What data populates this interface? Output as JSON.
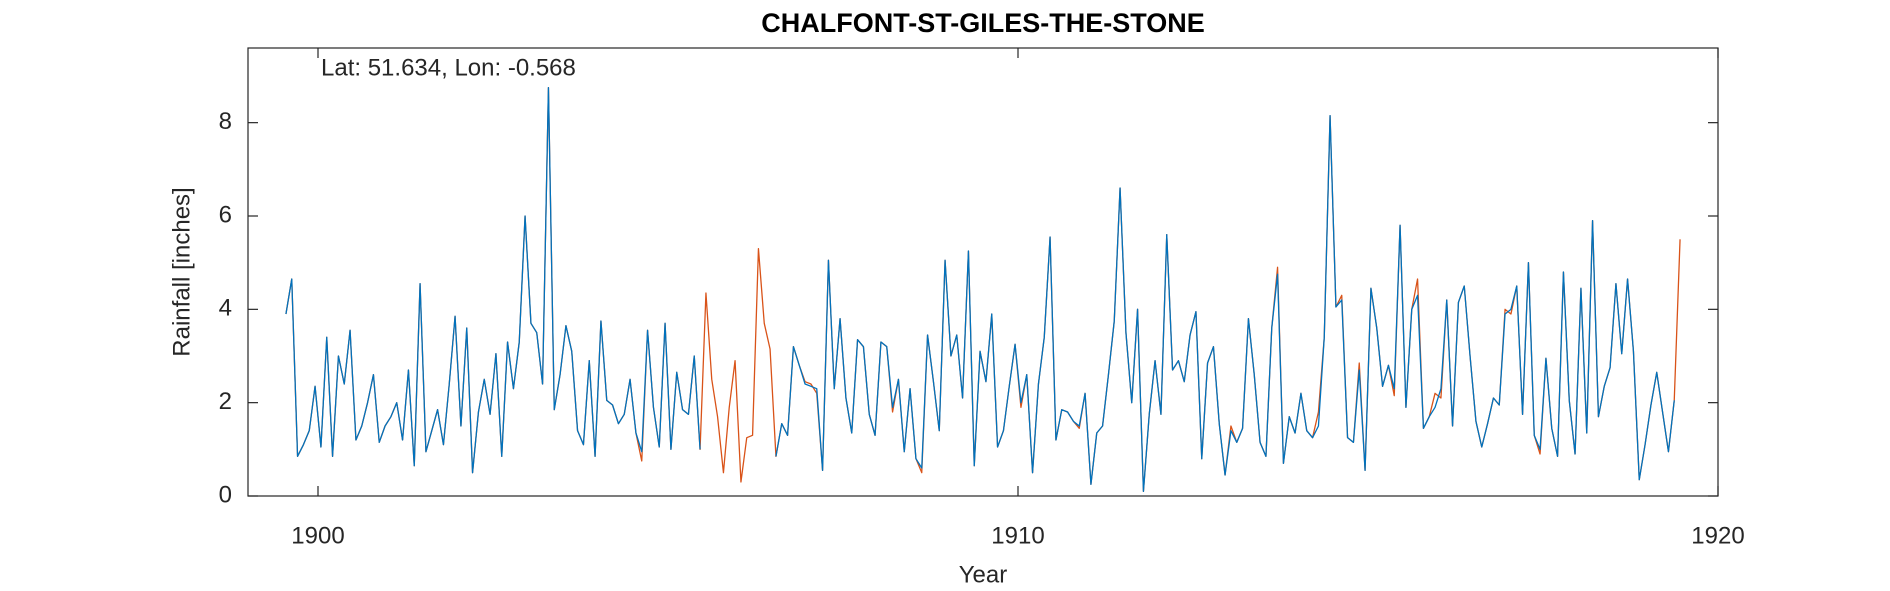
{
  "chart_data": {
    "type": "line",
    "title": "CHALFONT-ST-GILES-THE-STONE",
    "annotation": "Lat: 51.634, Lon: -0.568",
    "xlabel": "Year",
    "ylabel": "Rainfall [inches]",
    "xlim": [
      1899,
      1920
    ],
    "xticks": [
      1900,
      1910,
      1920
    ],
    "ylim": [
      0,
      9.6
    ],
    "yticks": [
      0,
      2,
      4,
      6,
      8
    ],
    "x": [
      1899.542,
      1899.625,
      1899.708,
      1899.792,
      1899.875,
      1899.958,
      1900.042,
      1900.125,
      1900.208,
      1900.292,
      1900.375,
      1900.458,
      1900.542,
      1900.625,
      1900.708,
      1900.792,
      1900.875,
      1900.958,
      1901.042,
      1901.125,
      1901.208,
      1901.292,
      1901.375,
      1901.458,
      1901.542,
      1901.625,
      1901.708,
      1901.792,
      1901.875,
      1901.958,
      1902.042,
      1902.125,
      1902.208,
      1902.292,
      1902.375,
      1902.458,
      1902.542,
      1902.625,
      1902.708,
      1902.792,
      1902.875,
      1902.958,
      1903.042,
      1903.125,
      1903.208,
      1903.292,
      1903.375,
      1903.458,
      1903.542,
      1903.625,
      1903.708,
      1903.792,
      1903.875,
      1903.958,
      1904.042,
      1904.125,
      1904.208,
      1904.292,
      1904.375,
      1904.458,
      1904.542,
      1904.625,
      1904.708,
      1904.792,
      1904.875,
      1904.958,
      1905.042,
      1905.125,
      1905.208,
      1905.292,
      1905.375,
      1905.458,
      1905.542,
      1905.625,
      1905.708,
      1905.792,
      1905.875,
      1905.958,
      1906.042,
      1906.125,
      1906.208,
      1906.292,
      1906.375,
      1906.458,
      1906.542,
      1906.625,
      1906.708,
      1906.792,
      1906.875,
      1906.958,
      1907.042,
      1907.125,
      1907.208,
      1907.292,
      1907.375,
      1907.458,
      1907.542,
      1907.625,
      1907.708,
      1907.792,
      1907.875,
      1907.958,
      1908.042,
      1908.125,
      1908.208,
      1908.292,
      1908.375,
      1908.458,
      1908.542,
      1908.625,
      1908.708,
      1908.792,
      1908.875,
      1908.958,
      1909.042,
      1909.125,
      1909.208,
      1909.292,
      1909.375,
      1909.458,
      1909.542,
      1909.625,
      1909.708,
      1909.792,
      1909.875,
      1909.958,
      1910.042,
      1910.125,
      1910.208,
      1910.292,
      1910.375,
      1910.458,
      1910.542,
      1910.625,
      1910.708,
      1910.792,
      1910.875,
      1910.958,
      1911.042,
      1911.125,
      1911.208,
      1911.292,
      1911.375,
      1911.458,
      1911.542,
      1911.625,
      1911.708,
      1911.792,
      1911.875,
      1911.958,
      1912.042,
      1912.125,
      1912.208,
      1912.292,
      1912.375,
      1912.458,
      1912.542,
      1912.625,
      1912.708,
      1912.792,
      1912.875,
      1912.958,
      1913.042,
      1913.125,
      1913.208,
      1913.292,
      1913.375,
      1913.458,
      1913.542,
      1913.625,
      1913.708,
      1913.792,
      1913.875,
      1913.958,
      1914.042,
      1914.125,
      1914.208,
      1914.292,
      1914.375,
      1914.458,
      1914.542,
      1914.625,
      1914.708,
      1914.792,
      1914.875,
      1914.958,
      1915.042,
      1915.125,
      1915.208,
      1915.292,
      1915.375,
      1915.458,
      1915.542,
      1915.625,
      1915.708,
      1915.792,
      1915.875,
      1915.958,
      1916.042,
      1916.125,
      1916.208,
      1916.292,
      1916.375,
      1916.458,
      1916.542,
      1916.625,
      1916.708,
      1916.792,
      1916.875,
      1916.958,
      1917.042,
      1917.125,
      1917.208,
      1917.292,
      1917.375,
      1917.458,
      1917.542,
      1917.625,
      1917.708,
      1917.792,
      1917.875,
      1917.958,
      1918.042,
      1918.125,
      1918.208,
      1918.292,
      1918.375,
      1918.458,
      1918.542,
      1918.625,
      1918.708,
      1918.792,
      1918.875,
      1918.958,
      1919.042,
      1919.125,
      1919.208,
      1919.292,
      1919.375,
      1919.458
    ],
    "series": [
      {
        "color": "#D95319",
        "values": [
          3.9,
          4.65,
          0.85,
          1.1,
          1.4,
          2.35,
          1.05,
          3.4,
          0.85,
          3.0,
          2.4,
          3.55,
          1.2,
          1.5,
          2.0,
          2.6,
          1.15,
          1.5,
          1.7,
          2.0,
          1.2,
          2.7,
          0.65,
          4.55,
          0.95,
          1.4,
          1.85,
          1.1,
          2.4,
          3.85,
          1.5,
          3.6,
          0.5,
          1.8,
          2.5,
          1.75,
          3.05,
          0.85,
          3.3,
          2.3,
          3.3,
          6.0,
          3.7,
          3.5,
          2.4,
          8.75,
          1.85,
          2.6,
          3.65,
          3.1,
          1.4,
          1.1,
          2.9,
          0.85,
          3.75,
          2.05,
          1.95,
          1.55,
          1.75,
          2.5,
          1.35,
          0.75,
          3.55,
          1.9,
          1.05,
          3.7,
          1.0,
          2.65,
          1.85,
          1.75,
          3.0,
          1.0,
          4.35,
          2.5,
          1.7,
          0.5,
          1.9,
          2.9,
          0.3,
          1.25,
          1.3,
          5.3,
          3.7,
          3.15,
          0.85,
          1.55,
          1.3,
          3.2,
          2.8,
          2.45,
          2.4,
          2.2,
          0.55,
          5.05,
          2.3,
          3.8,
          2.1,
          1.35,
          3.35,
          3.2,
          1.75,
          1.3,
          3.3,
          3.2,
          1.8,
          2.5,
          0.95,
          2.3,
          0.8,
          0.5,
          3.45,
          2.45,
          1.4,
          5.05,
          3.0,
          3.45,
          2.1,
          5.25,
          0.65,
          3.1,
          2.45,
          3.9,
          1.05,
          1.4,
          2.35,
          3.25,
          1.9,
          2.6,
          0.5,
          2.4,
          3.4,
          5.55,
          1.2,
          1.85,
          1.8,
          1.6,
          1.45,
          2.2,
          0.25,
          1.35,
          1.5,
          2.6,
          3.75,
          6.6,
          3.5,
          2.0,
          4.0,
          0.1,
          1.75,
          2.9,
          1.75,
          5.6,
          2.7,
          2.9,
          2.45,
          3.45,
          3.95,
          0.8,
          2.85,
          3.2,
          1.55,
          0.45,
          1.5,
          1.15,
          1.45,
          3.8,
          2.6,
          1.15,
          0.85,
          3.6,
          4.9,
          0.7,
          1.7,
          1.35,
          2.2,
          1.4,
          1.25,
          1.8,
          3.4,
          8.15,
          4.05,
          4.3,
          1.25,
          1.15,
          2.85,
          0.55,
          4.45,
          3.6,
          2.35,
          2.8,
          2.15,
          5.8,
          1.9,
          4.0,
          4.65,
          1.45,
          1.7,
          2.2,
          2.1,
          4.2,
          1.5,
          4.15,
          4.5,
          3.0,
          1.6,
          1.05,
          1.55,
          2.1,
          1.95,
          4.0,
          3.9,
          4.5,
          1.75,
          5.0,
          1.3,
          0.9,
          2.95,
          1.45,
          0.85,
          4.8,
          2.05,
          0.9,
          4.45,
          1.35,
          5.9,
          1.7,
          2.35,
          2.75,
          4.55,
          3.05,
          4.65,
          3.1,
          0.35,
          1.1,
          1.95,
          2.65,
          1.8,
          0.95,
          2.05,
          5.5
        ]
      },
      {
        "color": "#0072BD",
        "values": [
          3.9,
          4.65,
          0.85,
          1.1,
          1.4,
          2.35,
          1.05,
          3.4,
          0.85,
          3.0,
          2.4,
          3.55,
          1.2,
          1.5,
          2.0,
          2.6,
          1.15,
          1.5,
          1.7,
          2.0,
          1.2,
          2.7,
          0.65,
          4.55,
          0.95,
          1.4,
          1.85,
          1.1,
          2.4,
          3.85,
          1.5,
          3.6,
          0.5,
          1.8,
          2.5,
          1.75,
          3.05,
          0.85,
          3.3,
          2.3,
          3.3,
          6.0,
          3.7,
          3.5,
          2.4,
          8.75,
          1.85,
          2.6,
          3.65,
          3.1,
          1.4,
          1.1,
          2.9,
          0.85,
          3.75,
          2.05,
          1.95,
          1.55,
          1.75,
          2.5,
          1.35,
          0.95,
          3.55,
          1.9,
          1.05,
          3.7,
          1.0,
          2.65,
          1.85,
          1.75,
          3.0,
          1.0,
          null,
          null,
          null,
          null,
          null,
          null,
          null,
          null,
          null,
          null,
          null,
          null,
          0.85,
          1.55,
          1.3,
          3.2,
          2.8,
          2.4,
          2.35,
          2.3,
          0.55,
          5.05,
          2.3,
          3.8,
          2.1,
          1.35,
          3.35,
          3.2,
          1.75,
          1.3,
          3.3,
          3.2,
          1.9,
          2.5,
          0.95,
          2.3,
          0.8,
          0.6,
          3.45,
          2.45,
          1.4,
          5.05,
          3.0,
          3.45,
          2.1,
          5.25,
          0.65,
          3.1,
          2.45,
          3.9,
          1.05,
          1.4,
          2.35,
          3.25,
          2.0,
          2.6,
          0.5,
          2.4,
          3.4,
          5.55,
          1.2,
          1.85,
          1.8,
          1.6,
          1.5,
          2.2,
          0.25,
          1.35,
          1.5,
          2.6,
          3.75,
          6.6,
          3.5,
          2.0,
          4.0,
          0.1,
          1.75,
          2.9,
          1.75,
          5.6,
          2.7,
          2.9,
          2.45,
          3.45,
          3.95,
          0.8,
          2.85,
          3.2,
          1.55,
          0.45,
          1.4,
          1.15,
          1.45,
          3.8,
          2.6,
          1.15,
          0.85,
          3.6,
          4.75,
          0.7,
          1.7,
          1.35,
          2.2,
          1.4,
          1.25,
          1.5,
          3.4,
          8.15,
          4.05,
          4.2,
          1.25,
          1.15,
          2.7,
          0.55,
          4.45,
          3.6,
          2.35,
          2.8,
          2.3,
          5.8,
          1.9,
          4.0,
          4.3,
          1.45,
          1.7,
          1.9,
          2.3,
          4.2,
          1.5,
          4.15,
          4.5,
          3.0,
          1.6,
          1.05,
          1.55,
          2.1,
          1.95,
          3.9,
          4.0,
          4.5,
          1.75,
          5.0,
          1.3,
          1.0,
          2.95,
          1.45,
          0.85,
          4.8,
          2.05,
          0.9,
          4.45,
          1.35,
          5.9,
          1.7,
          2.35,
          2.75,
          4.55,
          3.05,
          4.65,
          3.1,
          0.35,
          1.1,
          1.95,
          2.65,
          1.8,
          0.95,
          2.05,
          null
        ]
      }
    ]
  }
}
